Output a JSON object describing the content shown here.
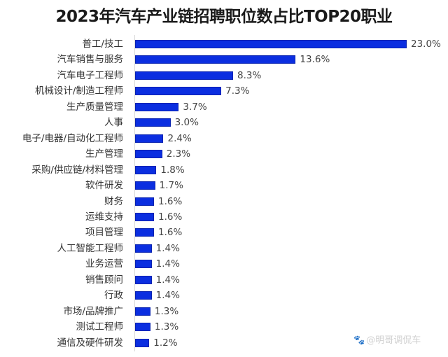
{
  "title": "2023年汽车产业链招聘职位数占比TOP20职业",
  "watermark": {
    "icon": "paw-icon",
    "text": "@明哥调侃车"
  },
  "chart_data": {
    "type": "bar",
    "orientation": "horizontal",
    "title": "2023年汽车产业链招聘职位数占比TOP20职业",
    "xlabel": "",
    "ylabel": "",
    "grid": false,
    "legend": null,
    "bar_color": "#0b2ee0",
    "value_unit": "%",
    "xlim": [
      0,
      23.0
    ],
    "categories": [
      "普工/技工",
      "汽车销售与服务",
      "汽车电子工程师",
      "机械设计/制造工程师",
      "生产质量管理",
      "人事",
      "电子/电器/自动化工程师",
      "生产管理",
      "采购/供应链/材料管理",
      "软件研发",
      "财务",
      "运维支持",
      "项目管理",
      "人工智能工程师",
      "业务运营",
      "销售顾问",
      "行政",
      "市场/品牌推广",
      "测试工程师",
      "通信及硬件研发"
    ],
    "values": [
      23.0,
      13.6,
      8.3,
      7.3,
      3.7,
      3.0,
      2.4,
      2.3,
      1.8,
      1.7,
      1.6,
      1.6,
      1.6,
      1.4,
      1.4,
      1.4,
      1.4,
      1.3,
      1.3,
      1.2
    ],
    "labels": [
      "23.0%",
      "13.6%",
      "8.3%",
      "7.3%",
      "3.7%",
      "3.0%",
      "2.4%",
      "2.3%",
      "1.8%",
      "1.7%",
      "1.6%",
      "1.6%",
      "1.6%",
      "1.4%",
      "1.4%",
      "1.4%",
      "1.4%",
      "1.3%",
      "1.3%",
      "1.2%"
    ]
  }
}
